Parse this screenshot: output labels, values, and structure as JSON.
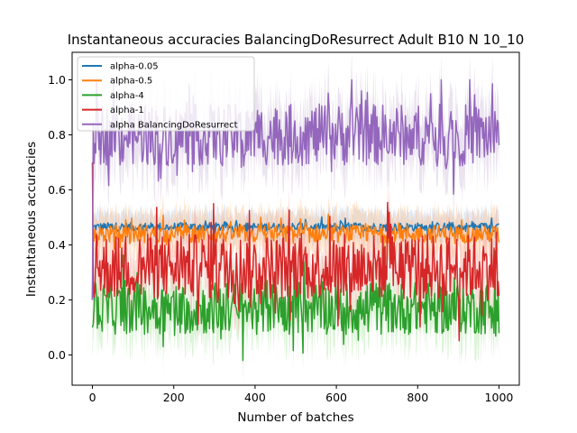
{
  "chart_data": {
    "type": "line",
    "title": "Instantaneous accuracies BalancingDoResurrect Adult B10 N 10_10",
    "xlabel": "Number of batches",
    "ylabel": "Instantaneous accuracies",
    "xlim": [
      -50,
      1050
    ],
    "ylim": [
      -0.11,
      1.1
    ],
    "x_ticks": [
      0,
      200,
      400,
      600,
      800,
      1000
    ],
    "x_tick_labels": [
      "0",
      "200",
      "400",
      "600",
      "800",
      "1000"
    ],
    "y_ticks": [
      0.0,
      0.2,
      0.4,
      0.6,
      0.8,
      1.0
    ],
    "y_tick_labels": [
      "0.0",
      "0.2",
      "0.4",
      "0.6",
      "0.8",
      "1.0"
    ],
    "grid": false,
    "legend_position": "top-left",
    "x_range": [
      0,
      1000
    ],
    "series": [
      {
        "name": "alpha-0.05",
        "color": "#1f77b4",
        "start": 0.2,
        "center": 0.465,
        "jitter": 0.02,
        "band": 0.06,
        "band_color": "#aec7e8"
      },
      {
        "name": "alpha-0.5",
        "color": "#ff7f0e",
        "start": 0.2,
        "center": 0.44,
        "jitter": 0.04,
        "band": 0.08,
        "band_color": "#ffbb78"
      },
      {
        "name": "alpha-4",
        "color": "#2ca02c",
        "start": 0.1,
        "center": 0.17,
        "jitter": 0.12,
        "band": 0.1,
        "band_color": "#98df8a"
      },
      {
        "name": "alpha-1",
        "color": "#d62728",
        "start": 0.7,
        "center": 0.32,
        "jitter": 0.15,
        "band": 0.1,
        "band_color": "#ff9896"
      },
      {
        "name": "alpha BalancingDoResurrect",
        "color": "#9467bd",
        "start": 0.2,
        "center": 0.8,
        "jitter": 0.14,
        "band": 0.12,
        "band_color": "#c5b0d5"
      }
    ]
  }
}
